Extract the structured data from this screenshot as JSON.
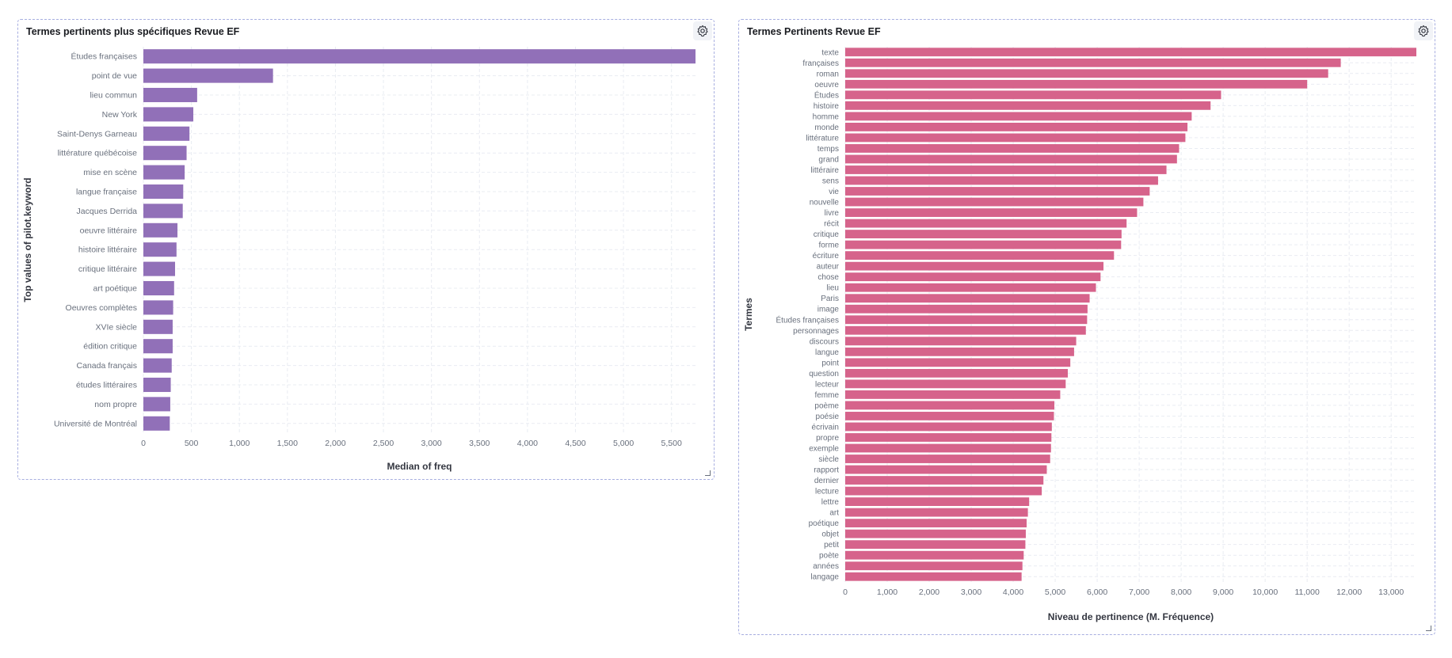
{
  "panels": [
    {
      "title": "Termes pertinents plus spécifiques Revue EF",
      "settings_icon": "gear-icon",
      "chart_data": {
        "type": "bar",
        "orientation": "horizontal",
        "color": "#9170b8",
        "categories": [
          "Études françaises",
          "point de vue",
          "lieu commun",
          "New York",
          "Saint-Denys Garneau",
          "littérature québécoise",
          "mise en scène",
          "langue française",
          "Jacques Derrida",
          "oeuvre littéraire",
          "histoire littéraire",
          "critique littéraire",
          "art poétique",
          "Oeuvres complètes",
          "XVIe siècle",
          "édition critique",
          "Canada français",
          "études littéraires",
          "nom propre",
          "Université de Montréal"
        ],
        "values": [
          5750,
          1350,
          560,
          520,
          480,
          450,
          430,
          415,
          410,
          355,
          345,
          330,
          320,
          310,
          305,
          305,
          295,
          285,
          280,
          275
        ],
        "xlabel": "Median of freq",
        "ylabel": "Top values of pilot.keyword",
        "xticks": [
          0,
          500,
          1000,
          1500,
          2000,
          2500,
          3000,
          3500,
          4000,
          4500,
          5000,
          5500
        ],
        "xtick_labels": [
          "0",
          "500",
          "1,000",
          "1,500",
          "2,000",
          "2,500",
          "3,000",
          "3,500",
          "4,000",
          "4,500",
          "5,000",
          "5,500"
        ],
        "xlim": [
          0,
          5750
        ],
        "grid": true
      }
    },
    {
      "title": "Termes Pertinents Revue EF",
      "settings_icon": "gear-icon",
      "chart_data": {
        "type": "bar",
        "orientation": "horizontal",
        "color": "#d6638b",
        "categories": [
          "texte",
          "françaises",
          "roman",
          "oeuvre",
          "Études",
          "histoire",
          "homme",
          "monde",
          "littérature",
          "temps",
          "grand",
          "littéraire",
          "sens",
          "vie",
          "nouvelle",
          "livre",
          "récit",
          "critique",
          "forme",
          "écriture",
          "auteur",
          "chose",
          "lieu",
          "Paris",
          "image",
          "Études françaises",
          "personnages",
          "discours",
          "langue",
          "point",
          "question",
          "lecteur",
          "femme",
          "poème",
          "poésie",
          "écrivain",
          "propre",
          "exemple",
          "siècle",
          "rapport",
          "dernier",
          "lecture",
          "lettre",
          "art",
          "poétique",
          "objet",
          "petit",
          "poète",
          "années",
          "langage"
        ],
        "values": [
          13600,
          11800,
          11500,
          11000,
          8950,
          8700,
          8250,
          8150,
          8100,
          7950,
          7900,
          7650,
          7450,
          7250,
          7100,
          6950,
          6700,
          6580,
          6570,
          6400,
          6150,
          6080,
          5970,
          5820,
          5770,
          5760,
          5730,
          5500,
          5450,
          5360,
          5300,
          5250,
          5120,
          4980,
          4970,
          4920,
          4910,
          4900,
          4880,
          4800,
          4720,
          4680,
          4380,
          4350,
          4320,
          4300,
          4290,
          4250,
          4220,
          4200
        ],
        "xlabel": "Niveau de pertinence (M. Fréquence)",
        "ylabel": "Termes",
        "xticks": [
          0,
          1000,
          2000,
          3000,
          4000,
          5000,
          6000,
          7000,
          8000,
          9000,
          10000,
          11000,
          12000,
          13000
        ],
        "xtick_labels": [
          "0",
          "1,000",
          "2,000",
          "3,000",
          "4,000",
          "5,000",
          "6,000",
          "7,000",
          "8,000",
          "9,000",
          "10,000",
          "11,000",
          "12,000",
          "13,000"
        ],
        "xlim": [
          0,
          13600
        ],
        "grid": true
      }
    }
  ]
}
